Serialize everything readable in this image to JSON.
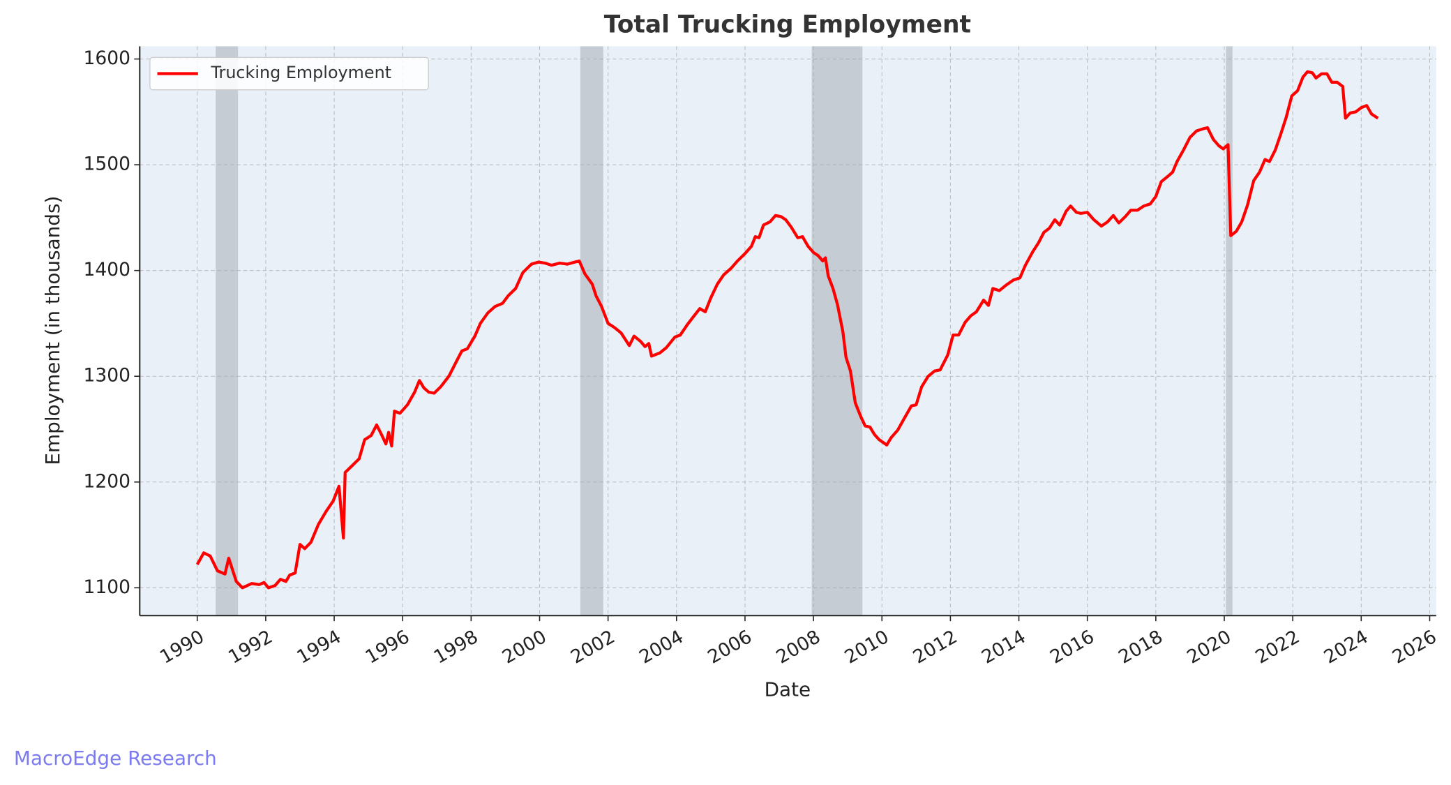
{
  "chart_data": {
    "type": "line",
    "title": "Total Trucking Employment",
    "xlabel": "Date",
    "ylabel": "Employment (in thousands)",
    "watermark": "MacroEdge Research",
    "x": [
      1990.0,
      1990.19,
      1990.38,
      1990.59,
      1990.81,
      1990.92,
      1991.14,
      1991.32,
      1991.59,
      1991.81,
      1991.95,
      1992.08,
      1992.27,
      1992.43,
      1992.59,
      1992.7,
      1992.86,
      1993.0,
      1993.14,
      1993.32,
      1993.54,
      1993.76,
      1993.97,
      1994.14,
      1994.27,
      1994.32,
      1994.51,
      1994.73,
      1994.89,
      1995.08,
      1995.24,
      1995.38,
      1995.51,
      1995.59,
      1995.68,
      1995.76,
      1995.92,
      1996.14,
      1996.35,
      1996.49,
      1996.62,
      1996.76,
      1996.92,
      1997.11,
      1997.35,
      1997.57,
      1997.73,
      1997.89,
      1998.11,
      1998.27,
      1998.49,
      1998.7,
      1998.92,
      1999.08,
      1999.3,
      1999.51,
      1999.76,
      1999.97,
      2000.16,
      2000.35,
      2000.59,
      2000.81,
      2001.03,
      2001.16,
      2001.32,
      2001.54,
      2001.65,
      2001.81,
      2002.0,
      2002.19,
      2002.38,
      2002.62,
      2002.76,
      2002.95,
      2003.08,
      2003.19,
      2003.27,
      2003.51,
      2003.7,
      2003.95,
      2004.11,
      2004.32,
      2004.51,
      2004.68,
      2004.84,
      2005.0,
      2005.19,
      2005.38,
      2005.59,
      2005.78,
      2006.0,
      2006.19,
      2006.3,
      2006.41,
      2006.54,
      2006.73,
      2006.89,
      2007.05,
      2007.19,
      2007.35,
      2007.54,
      2007.68,
      2007.84,
      2008.0,
      2008.14,
      2008.27,
      2008.35,
      2008.43,
      2008.57,
      2008.7,
      2008.86,
      2008.95,
      2009.08,
      2009.22,
      2009.38,
      2009.51,
      2009.65,
      2009.78,
      2009.92,
      2010.14,
      2010.27,
      2010.46,
      2010.65,
      2010.86,
      2011.0,
      2011.16,
      2011.35,
      2011.54,
      2011.7,
      2011.92,
      2012.08,
      2012.24,
      2012.43,
      2012.59,
      2012.76,
      2012.97,
      2013.11,
      2013.24,
      2013.43,
      2013.62,
      2013.84,
      2014.03,
      2014.19,
      2014.41,
      2014.57,
      2014.73,
      2014.89,
      2015.05,
      2015.19,
      2015.38,
      2015.51,
      2015.68,
      2015.81,
      2016.0,
      2016.19,
      2016.41,
      2016.59,
      2016.76,
      2016.92,
      2017.11,
      2017.27,
      2017.46,
      2017.65,
      2017.84,
      2018.0,
      2018.16,
      2018.35,
      2018.49,
      2018.62,
      2018.81,
      2019.0,
      2019.19,
      2019.38,
      2019.51,
      2019.68,
      2019.84,
      2019.97,
      2020.11,
      2020.19,
      2020.35,
      2020.51,
      2020.68,
      2020.86,
      2021.03,
      2021.19,
      2021.32,
      2021.49,
      2021.65,
      2021.81,
      2021.97,
      2022.14,
      2022.3,
      2022.43,
      2022.57,
      2022.68,
      2022.84,
      2023.0,
      2023.14,
      2023.3,
      2023.46,
      2023.54,
      2023.68,
      2023.84,
      2024.0,
      2024.16,
      2024.3,
      2024.49
    ],
    "series": [
      {
        "name": "Trucking Employment",
        "color": "#ff0000",
        "values": [
          1122,
          1133,
          1130,
          1116,
          1113,
          1128,
          1106,
          1100,
          1104,
          1103,
          1105,
          1100,
          1102,
          1108,
          1106,
          1112,
          1114,
          1141,
          1137,
          1143,
          1160,
          1172,
          1182,
          1196,
          1147,
          1209,
          1215,
          1222,
          1240,
          1244,
          1254,
          1245,
          1236,
          1247,
          1234,
          1267,
          1265,
          1273,
          1285,
          1296,
          1289,
          1285,
          1284,
          1290,
          1300,
          1314,
          1324,
          1326,
          1338,
          1350,
          1360,
          1366,
          1369,
          1376,
          1383,
          1398,
          1406,
          1408,
          1407,
          1405,
          1407,
          1406,
          1408,
          1409,
          1397,
          1387,
          1376,
          1366,
          1350,
          1346,
          1341,
          1329,
          1338,
          1333,
          1328,
          1331,
          1319,
          1322,
          1327,
          1337,
          1339,
          1349,
          1357,
          1364,
          1361,
          1374,
          1387,
          1396,
          1402,
          1409,
          1416,
          1423,
          1432,
          1431,
          1443,
          1446,
          1452,
          1451,
          1448,
          1441,
          1431,
          1432,
          1423,
          1417,
          1414,
          1409,
          1412,
          1395,
          1383,
          1368,
          1342,
          1318,
          1305,
          1275,
          1262,
          1253,
          1252,
          1245,
          1240,
          1235,
          1242,
          1249,
          1260,
          1272,
          1273,
          1290,
          1300,
          1305,
          1306,
          1320,
          1339,
          1339,
          1351,
          1357,
          1361,
          1372,
          1367,
          1383,
          1381,
          1386,
          1391,
          1393,
          1405,
          1418,
          1426,
          1436,
          1440,
          1448,
          1443,
          1456,
          1461,
          1455,
          1454,
          1455,
          1448,
          1442,
          1446,
          1452,
          1445,
          1451,
          1457,
          1457,
          1461,
          1463,
          1470,
          1484,
          1489,
          1493,
          1503,
          1514,
          1526,
          1532,
          1534,
          1535,
          1524,
          1518,
          1515,
          1519,
          1433,
          1437,
          1446,
          1462,
          1485,
          1493,
          1505,
          1503,
          1514,
          1529,
          1545,
          1565,
          1570,
          1583,
          1588,
          1587,
          1582,
          1586,
          1586,
          1578,
          1578,
          1574,
          1544,
          1549,
          1550,
          1554,
          1556,
          1548,
          1544
        ]
      }
    ],
    "shaded_regions": [
      [
        1990.54,
        1991.19
      ],
      [
        2001.19,
        2001.86
      ],
      [
        2007.95,
        2009.43
      ],
      [
        2020.05,
        2020.24
      ]
    ],
    "shade_color": "#a0a8b0",
    "xlim": [
      1988.32,
      2026.19
    ],
    "ylim": [
      1073.7,
      1612
    ],
    "xticks": [
      1990,
      1992,
      1994,
      1996,
      1998,
      2000,
      2002,
      2004,
      2006,
      2008,
      2010,
      2012,
      2014,
      2016,
      2018,
      2020,
      2022,
      2024,
      2026
    ],
    "yticks": [
      1100,
      1200,
      1300,
      1400,
      1500,
      1600
    ],
    "grid": true,
    "legend": "upper left"
  }
}
